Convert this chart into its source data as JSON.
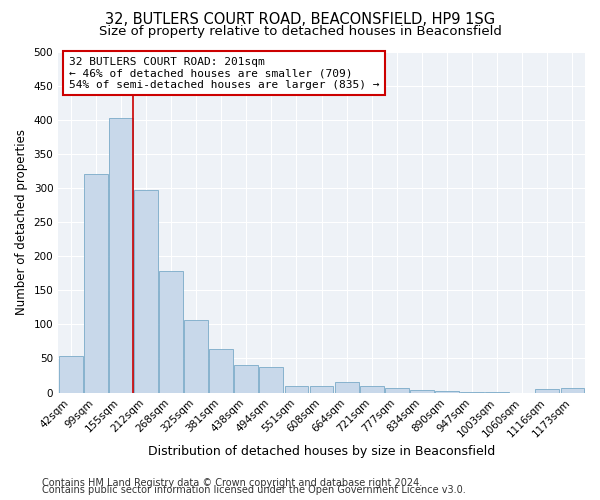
{
  "title1": "32, BUTLERS COURT ROAD, BEACONSFIELD, HP9 1SG",
  "title2": "Size of property relative to detached houses in Beaconsfield",
  "xlabel": "Distribution of detached houses by size in Beaconsfield",
  "ylabel": "Number of detached properties",
  "categories": [
    "42sqm",
    "99sqm",
    "155sqm",
    "212sqm",
    "268sqm",
    "325sqm",
    "381sqm",
    "438sqm",
    "494sqm",
    "551sqm",
    "608sqm",
    "664sqm",
    "721sqm",
    "777sqm",
    "834sqm",
    "890sqm",
    "947sqm",
    "1003sqm",
    "1060sqm",
    "1116sqm",
    "1173sqm"
  ],
  "values": [
    53,
    320,
    403,
    297,
    178,
    107,
    64,
    40,
    37,
    10,
    9,
    15,
    9,
    7,
    4,
    2,
    1,
    1,
    0,
    5,
    6
  ],
  "bar_color": "#c8d8ea",
  "bar_edge_color": "#7aaac8",
  "vline_color": "#cc0000",
  "vline_pos": 2.5,
  "annotation_text": "32 BUTLERS COURT ROAD: 201sqm\n← 46% of detached houses are smaller (709)\n54% of semi-detached houses are larger (835) →",
  "annotation_box_color": "white",
  "annotation_box_edge": "#cc0000",
  "footer1": "Contains HM Land Registry data © Crown copyright and database right 2024.",
  "footer2": "Contains public sector information licensed under the Open Government Licence v3.0.",
  "ylim": [
    0,
    500
  ],
  "yticks": [
    0,
    50,
    100,
    150,
    200,
    250,
    300,
    350,
    400,
    450,
    500
  ],
  "background_color": "#eef2f7",
  "grid_color": "#ffffff",
  "title1_fontsize": 10.5,
  "title2_fontsize": 9.5,
  "xlabel_fontsize": 9,
  "ylabel_fontsize": 8.5,
  "tick_fontsize": 7.5,
  "annot_fontsize": 8,
  "footer_fontsize": 7
}
